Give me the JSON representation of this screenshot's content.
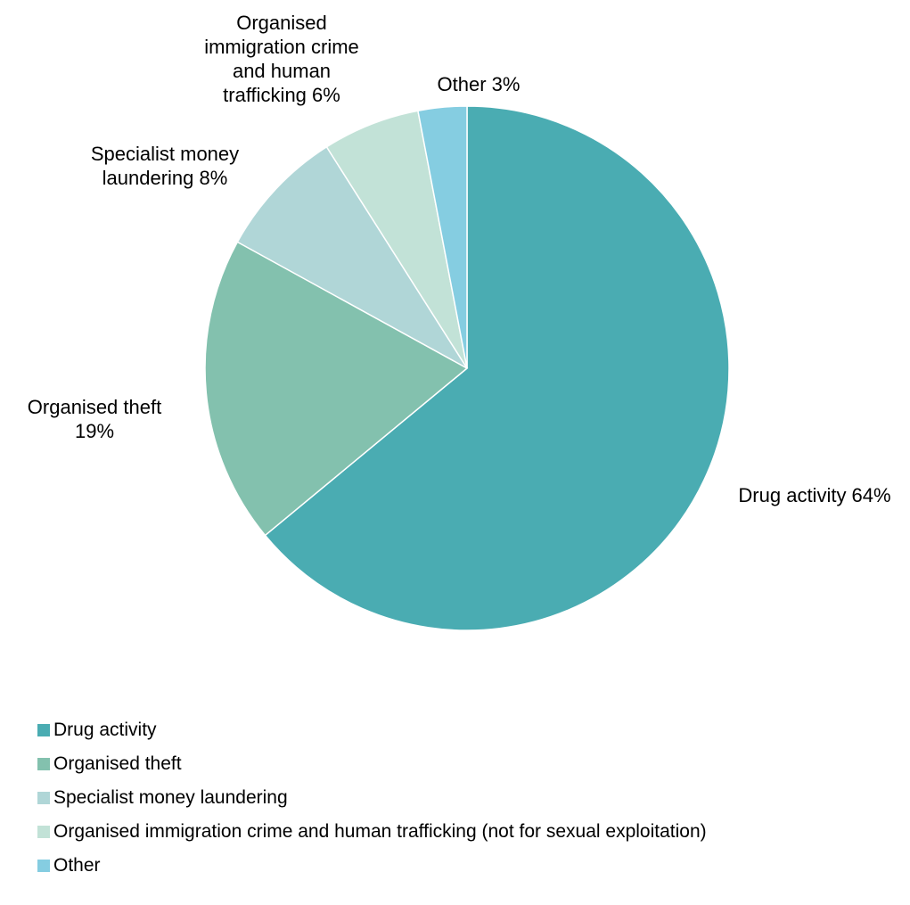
{
  "chart_data": {
    "type": "pie",
    "start_angle_deg": 0,
    "direction": "clockwise",
    "slices": [
      {
        "name": "Drug activity",
        "value": 64,
        "color": "#4aacb2",
        "label_lines": [
          "Drug activity 64%"
        ]
      },
      {
        "name": "Organised theft",
        "value": 19,
        "color": "#83c1ae",
        "label_lines": [
          "Organised theft",
          "19%"
        ]
      },
      {
        "name": "Specialist money laundering",
        "value": 8,
        "color": "#b0d6d7",
        "label_lines": [
          "Specialist money",
          "laundering 8%"
        ]
      },
      {
        "name": "Organised immigration crime and human trafficking (not for sexual exploitation)",
        "value": 6,
        "color": "#c2e2d7",
        "label_lines": [
          "Organised",
          "immigration crime",
          "and human",
          "trafficking 6%"
        ]
      },
      {
        "name": "Other",
        "value": 3,
        "color": "#85cde1",
        "label_lines": [
          "Other 3%"
        ]
      }
    ],
    "legend_position": "bottom-left"
  }
}
